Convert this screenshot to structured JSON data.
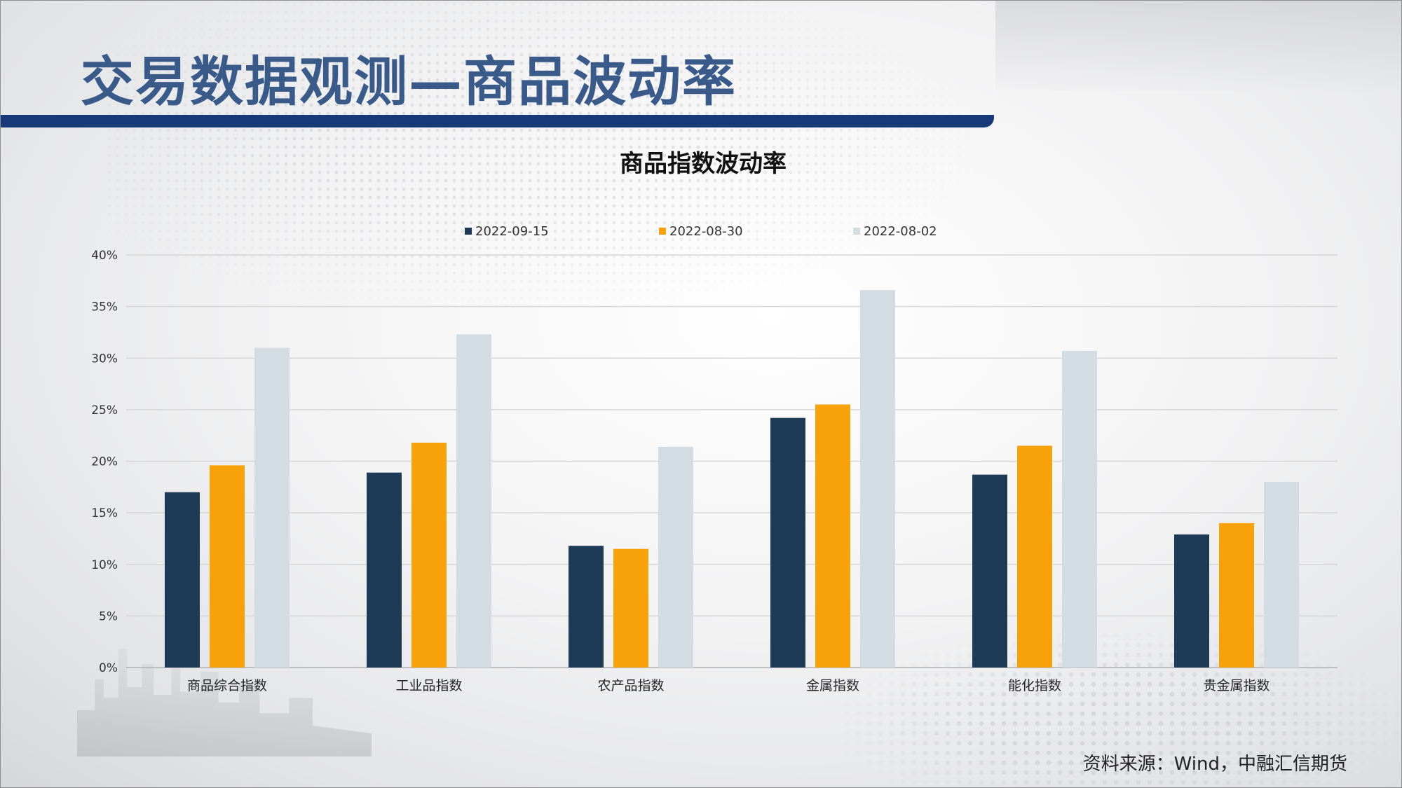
{
  "header": {
    "title": "交易数据观测—商品波动率"
  },
  "footer": {
    "source": "资料来源：Wind，中融汇信期货"
  },
  "chart_data": {
    "type": "bar",
    "title": "商品指数波动率",
    "categories": [
      "商品综合指数",
      "工业品指数",
      "农产品指数",
      "金属指数",
      "能化指数",
      "贵金属指数"
    ],
    "series": [
      {
        "name": "2022-09-15",
        "color": "#1f3a56",
        "values": [
          17.0,
          18.9,
          11.8,
          24.2,
          18.7,
          12.9
        ]
      },
      {
        "name": "2022-08-30",
        "color": "#f7a10b",
        "values": [
          19.6,
          21.8,
          11.5,
          25.5,
          21.5,
          14.0
        ]
      },
      {
        "name": "2022-08-02",
        "color": "#d3dbe3",
        "values": [
          31.0,
          32.3,
          21.4,
          36.6,
          30.7,
          18.0
        ]
      }
    ],
    "y_ticks": [
      "0%",
      "5%",
      "10%",
      "15%",
      "20%",
      "25%",
      "30%",
      "35%",
      "40%"
    ],
    "ylim": [
      0,
      40
    ],
    "grid": true,
    "legend": "top"
  }
}
